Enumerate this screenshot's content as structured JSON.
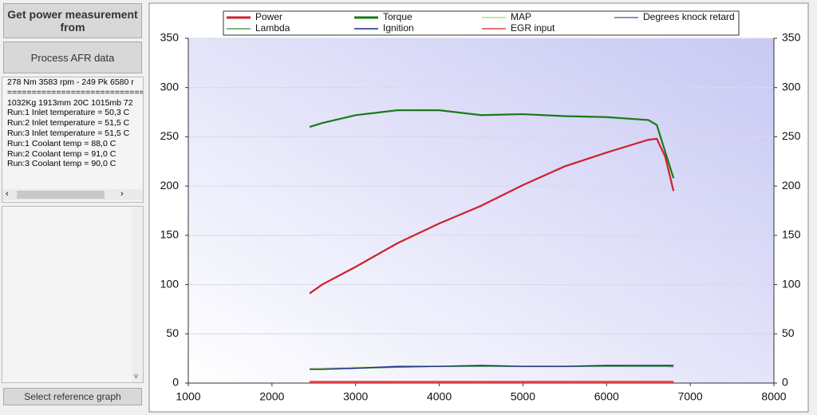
{
  "sidebar": {
    "buttons": [
      "Get power measurement from",
      "Process AFR data"
    ],
    "info_lines": [
      "278 Nm 3583 rpm - 249 Pk 6580 r",
      "==============================",
      "1032Kg 1913mm 20C 1015mb 72",
      "Run:1 Inlet temperature = 50,3 C",
      "Run:2 Inlet temperature = 51,5 C",
      "Run:3 Inlet temperature = 51,5 C",
      "Run:1 Coolant temp = 88,0 C",
      "Run:2 Coolant temp = 91,0 C",
      "Run:3 Coolant temp = 90,0 C"
    ],
    "reference_button": "Select reference graph"
  },
  "chart_data": {
    "type": "line",
    "x": [
      2450,
      2600,
      3000,
      3500,
      4000,
      4500,
      5000,
      5500,
      6000,
      6500,
      6600,
      6700,
      6800
    ],
    "series": [
      {
        "name": "Power",
        "color": "#d0202a",
        "values": [
          91,
          100,
          118,
          142,
          162,
          180,
          201,
          220,
          234,
          247,
          248,
          230,
          195
        ]
      },
      {
        "name": "Torque",
        "color": "#1a7a1a",
        "values": [
          260,
          264,
          272,
          277,
          277,
          272,
          273,
          271,
          270,
          267,
          262,
          235,
          208
        ]
      },
      {
        "name": "MAP",
        "color": "#b8d870",
        "values": [
          15,
          15,
          16,
          16,
          17,
          17,
          17,
          17,
          17,
          17,
          17,
          17,
          16
        ]
      },
      {
        "name": "Degrees knock retard",
        "color": "#8060a0",
        "values": [
          0,
          0,
          0,
          0,
          0,
          0,
          0,
          0,
          0,
          0,
          0,
          0,
          0
        ]
      },
      {
        "name": "Lambda",
        "color": "#4aa04a",
        "values": [
          14,
          14,
          15,
          16,
          17,
          17,
          17,
          17,
          17,
          17,
          17,
          17,
          17
        ]
      },
      {
        "name": "Ignition",
        "color": "#1a2a8a",
        "values": [
          14,
          14,
          15,
          17,
          17,
          18,
          17,
          17,
          18,
          18,
          18,
          18,
          18
        ]
      },
      {
        "name": "EGR input",
        "color": "#e04040",
        "values": [
          1,
          1,
          1,
          1,
          1,
          1,
          1,
          1,
          1,
          1,
          1,
          1,
          1
        ]
      }
    ],
    "xlim": [
      1000,
      8000
    ],
    "xticks": [
      1000,
      2000,
      3000,
      4000,
      5000,
      6000,
      7000,
      8000
    ],
    "ylim": [
      0,
      350
    ],
    "yticks": [
      0,
      50,
      100,
      150,
      200,
      250,
      300,
      350
    ],
    "grid": true
  }
}
